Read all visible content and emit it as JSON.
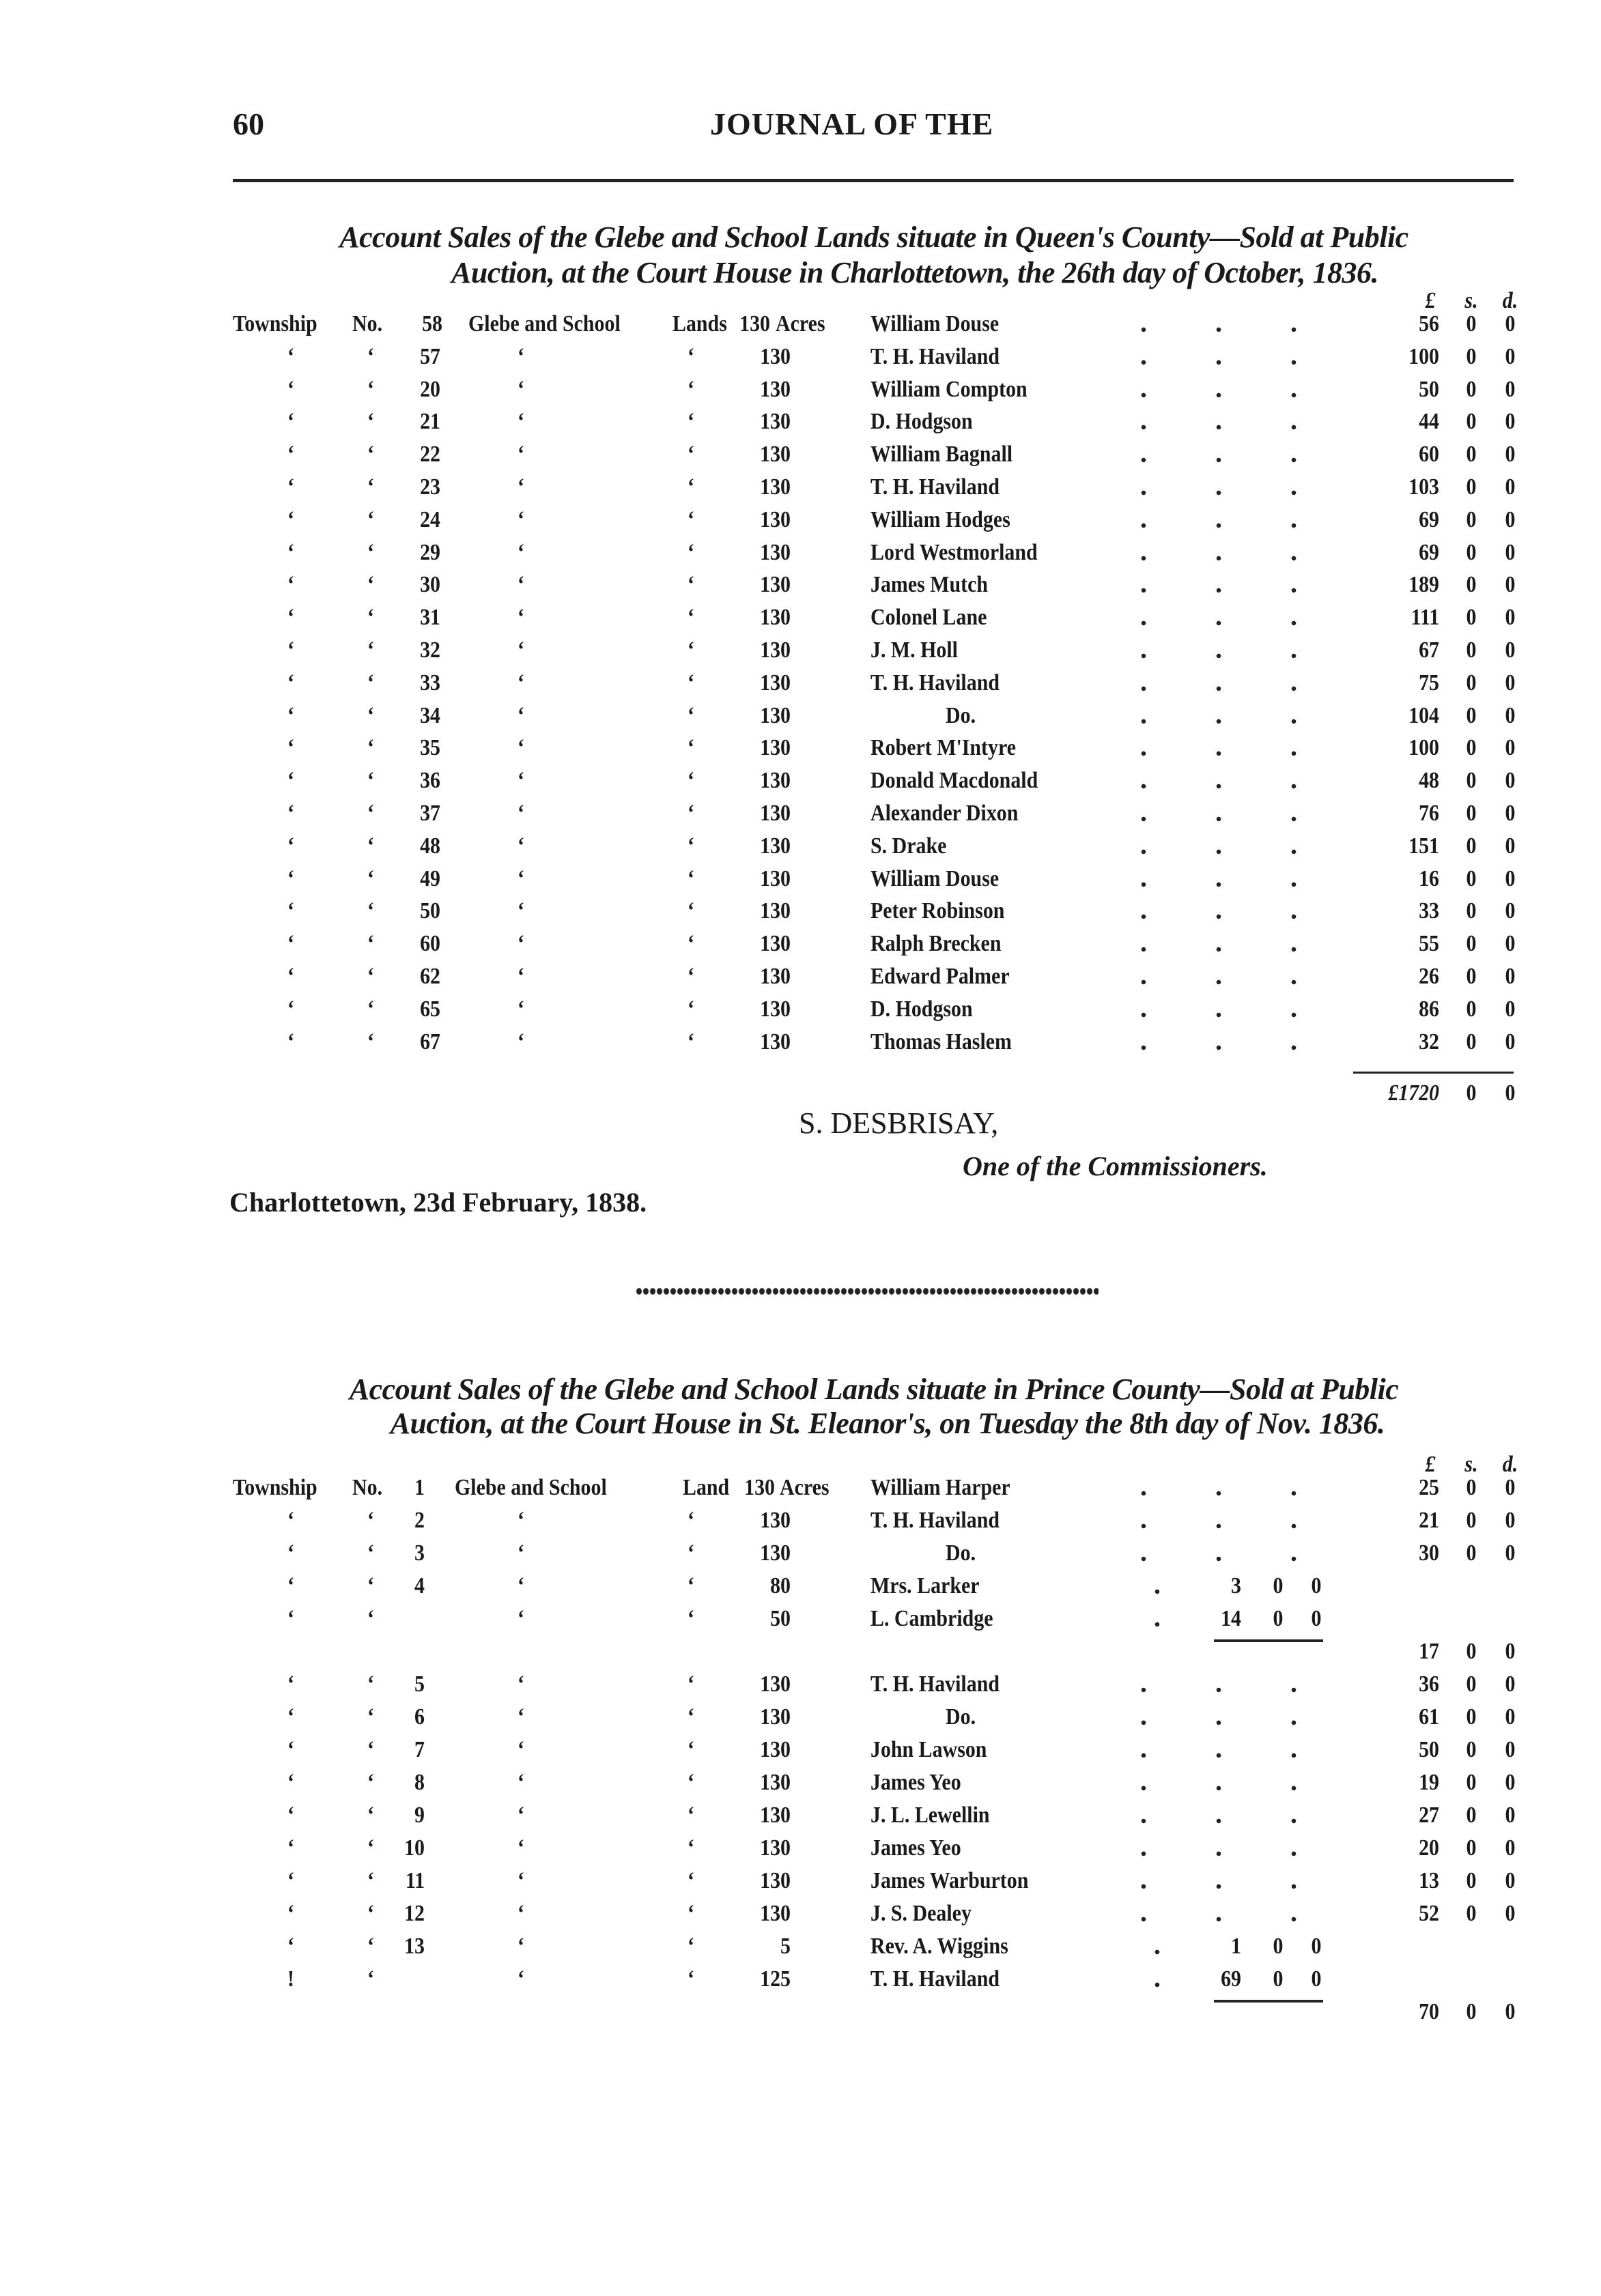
{
  "header": {
    "page_number": "60",
    "running_title": "JOURNAL OF THE"
  },
  "queens": {
    "title_line1": "Account Sales of the Glebe and School Lands situate in Queen's County—Sold at Public",
    "title_line2": "Auction, at the Court House in Charlottetown, the 26th day of October, 1836.",
    "currency_header": {
      "pounds": "£",
      "shillings": "s.",
      "pence": "d."
    },
    "rows": [
      {
        "c1": "Township",
        "c2": "No.",
        "lot": "58",
        "c4": "Glebe and School",
        "c5": "Lands",
        "acres": "130",
        "unit": "Acres",
        "name": "William Douse",
        "l": "56",
        "s": "0",
        "d": "0"
      },
      {
        "c1": "‘",
        "c2": "‘",
        "lot": "57",
        "c4": "‘",
        "c5": "‘",
        "acres": "130",
        "name": "T. H. Haviland",
        "l": "100",
        "s": "0",
        "d": "0"
      },
      {
        "c1": "‘",
        "c2": "‘",
        "lot": "20",
        "c4": "‘",
        "c5": "‘",
        "acres": "130",
        "name": "William Compton",
        "l": "50",
        "s": "0",
        "d": "0"
      },
      {
        "c1": "‘",
        "c2": "‘",
        "lot": "21",
        "c4": "‘",
        "c5": "‘",
        "acres": "130",
        "name": "D. Hodgson",
        "l": "44",
        "s": "0",
        "d": "0"
      },
      {
        "c1": "‘",
        "c2": "‘",
        "lot": "22",
        "c4": "‘",
        "c5": "‘",
        "acres": "130",
        "name": "William Bagnall",
        "l": "60",
        "s": "0",
        "d": "0"
      },
      {
        "c1": "‘",
        "c2": "‘",
        "lot": "23",
        "c4": "‘",
        "c5": "‘",
        "acres": "130",
        "name": "T. H. Haviland",
        "l": "103",
        "s": "0",
        "d": "0"
      },
      {
        "c1": "‘",
        "c2": "‘",
        "lot": "24",
        "c4": "‘",
        "c5": "‘",
        "acres": "130",
        "name": "William Hodges",
        "l": "69",
        "s": "0",
        "d": "0"
      },
      {
        "c1": "‘",
        "c2": "‘",
        "lot": "29",
        "c4": "‘",
        "c5": "‘",
        "acres": "130",
        "name": "Lord Westmorland",
        "l": "69",
        "s": "0",
        "d": "0"
      },
      {
        "c1": "‘",
        "c2": "‘",
        "lot": "30",
        "c4": "‘",
        "c5": "‘",
        "acres": "130",
        "name": "James Mutch",
        "l": "189",
        "s": "0",
        "d": "0"
      },
      {
        "c1": "‘",
        "c2": "‘",
        "lot": "31",
        "c4": "‘",
        "c5": "‘",
        "acres": "130",
        "name": "Colonel Lane",
        "l": "111",
        "s": "0",
        "d": "0"
      },
      {
        "c1": "‘",
        "c2": "‘",
        "lot": "32",
        "c4": "‘",
        "c5": "‘",
        "acres": "130",
        "name": "J. M. Holl",
        "l": "67",
        "s": "0",
        "d": "0"
      },
      {
        "c1": "‘",
        "c2": "‘",
        "lot": "33",
        "c4": "‘",
        "c5": "‘",
        "acres": "130",
        "name": "T. H. Haviland",
        "l": "75",
        "s": "0",
        "d": "0"
      },
      {
        "c1": "‘",
        "c2": "‘",
        "lot": "34",
        "c4": "‘",
        "c5": "‘",
        "acres": "130",
        "name": "Do.",
        "indent": true,
        "l": "104",
        "s": "0",
        "d": "0"
      },
      {
        "c1": "‘",
        "c2": "‘",
        "lot": "35",
        "c4": "‘",
        "c5": "‘",
        "acres": "130",
        "name": "Robert M'Intyre",
        "l": "100",
        "s": "0",
        "d": "0"
      },
      {
        "c1": "‘",
        "c2": "‘",
        "lot": "36",
        "c4": "‘",
        "c5": "‘",
        "acres": "130",
        "name": "Donald Macdonald",
        "l": "48",
        "s": "0",
        "d": "0"
      },
      {
        "c1": "‘",
        "c2": "‘",
        "lot": "37",
        "c4": "‘",
        "c5": "‘",
        "acres": "130",
        "name": "Alexander Dixon",
        "l": "76",
        "s": "0",
        "d": "0"
      },
      {
        "c1": "‘",
        "c2": "‘",
        "lot": "48",
        "c4": "‘",
        "c5": "‘",
        "acres": "130",
        "name": "S. Drake",
        "l": "151",
        "s": "0",
        "d": "0"
      },
      {
        "c1": "‘",
        "c2": "‘",
        "lot": "49",
        "c4": "‘",
        "c5": "‘",
        "acres": "130",
        "name": "William Douse",
        "l": "16",
        "s": "0",
        "d": "0"
      },
      {
        "c1": "‘",
        "c2": "‘",
        "lot": "50",
        "c4": "‘",
        "c5": "‘",
        "acres": "130",
        "name": "Peter Robinson",
        "l": "33",
        "s": "0",
        "d": "0"
      },
      {
        "c1": "‘",
        "c2": "‘",
        "lot": "60",
        "c4": "‘",
        "c5": "‘",
        "acres": "130",
        "name": "Ralph Brecken",
        "l": "55",
        "s": "0",
        "d": "0"
      },
      {
        "c1": "‘",
        "c2": "‘",
        "lot": "62",
        "c4": "‘",
        "c5": "‘",
        "acres": "130",
        "name": "Edward Palmer",
        "l": "26",
        "s": "0",
        "d": "0"
      },
      {
        "c1": "‘",
        "c2": "‘",
        "lot": "65",
        "c4": "‘",
        "c5": "‘",
        "acres": "130",
        "name": "D. Hodgson",
        "l": "86",
        "s": "0",
        "d": "0"
      },
      {
        "c1": "‘",
        "c2": "‘",
        "lot": "67",
        "c4": "‘",
        "c5": "‘",
        "acres": "130",
        "name": "Thomas Haslem",
        "l": "32",
        "s": "0",
        "d": "0"
      }
    ],
    "total": {
      "l": "£1720",
      "s": "0",
      "d": "0"
    },
    "signature": "S. DESBRISAY,",
    "signature_role": "One of the Commissioners.",
    "dateline": "Charlottetown, 23d February, 1838."
  },
  "prince": {
    "title_line1": "Account Sales of the Glebe and School Lands situate in Prince County—Sold at Public",
    "title_line2": "Auction, at the Court House in St. Eleanor's, on Tuesday the 8th day of Nov. 1836.",
    "currency_header": {
      "pounds": "£",
      "shillings": "s.",
      "pence": "d."
    },
    "rows": [
      {
        "c1": "Township",
        "c2": "No.",
        "lot": "1",
        "c4": "Glebe and School",
        "c5": "Land",
        "acres": "130",
        "unit": "Acres",
        "name": "William Harper",
        "l": "25",
        "s": "0",
        "d": "0"
      },
      {
        "c1": "‘",
        "c2": "‘",
        "lot": "2",
        "c4": "‘",
        "c5": "‘",
        "acres": "130",
        "name": "T. H. Haviland",
        "l": "21",
        "s": "0",
        "d": "0"
      },
      {
        "c1": "‘",
        "c2": "‘",
        "lot": "3",
        "c4": "‘",
        "c5": "‘",
        "acres": "130",
        "name": "Do.",
        "indent": true,
        "l": "30",
        "s": "0",
        "d": "0"
      },
      {
        "c1": "‘",
        "c2": "‘",
        "lot": "4",
        "c4": "‘",
        "c5": "‘",
        "acres": "80",
        "name": "Mrs. Larker",
        "sl": "3",
        "ss": "0",
        "sd": "0"
      },
      {
        "c1": "‘",
        "c2": "‘",
        "lot": "",
        "c4": "‘",
        "c5": "‘",
        "acres": "50",
        "name": "L. Cambridge",
        "sl": "14",
        "ss": "0",
        "sd": "0"
      },
      {
        "subrule": true,
        "l": "17",
        "s": "0",
        "d": "0"
      },
      {
        "c1": "‘",
        "c2": "‘",
        "lot": "5",
        "c4": "‘",
        "c5": "‘",
        "acres": "130",
        "name": "T. H. Haviland",
        "l": "36",
        "s": "0",
        "d": "0"
      },
      {
        "c1": "‘",
        "c2": "‘",
        "lot": "6",
        "c4": "‘",
        "c5": "‘",
        "acres": "130",
        "name": "Do.",
        "indent": true,
        "l": "61",
        "s": "0",
        "d": "0"
      },
      {
        "c1": "‘",
        "c2": "‘",
        "lot": "7",
        "c4": "‘",
        "c5": "‘",
        "acres": "130",
        "name": "John Lawson",
        "l": "50",
        "s": "0",
        "d": "0"
      },
      {
        "c1": "‘",
        "c2": "‘",
        "lot": "8",
        "c4": "‘",
        "c5": "‘",
        "acres": "130",
        "name": "James Yeo",
        "l": "19",
        "s": "0",
        "d": "0"
      },
      {
        "c1": "‘",
        "c2": "‘",
        "lot": "9",
        "c4": "‘",
        "c5": "‘",
        "acres": "130",
        "name": "J. L. Lewellin",
        "l": "27",
        "s": "0",
        "d": "0"
      },
      {
        "c1": "‘",
        "c2": "‘",
        "lot": "10",
        "c4": "‘",
        "c5": "‘",
        "acres": "130",
        "name": "James Yeo",
        "l": "20",
        "s": "0",
        "d": "0"
      },
      {
        "c1": "‘",
        "c2": "‘",
        "lot": "11",
        "c4": "‘",
        "c5": "‘",
        "acres": "130",
        "name": "James Warburton",
        "l": "13",
        "s": "0",
        "d": "0"
      },
      {
        "c1": "‘",
        "c2": "‘",
        "lot": "12",
        "c4": "‘",
        "c5": "‘",
        "acres": "130",
        "name": "J. S. Dealey",
        "l": "52",
        "s": "0",
        "d": "0"
      },
      {
        "c1": "‘",
        "c2": "‘",
        "lot": "13",
        "c4": "‘",
        "c5": "‘",
        "acres": "5",
        "name": "Rev. A. Wiggins",
        "sl": "1",
        "ss": "0",
        "sd": "0"
      },
      {
        "c1": "!",
        "c2": "‘",
        "lot": "",
        "c4": "‘",
        "c5": "‘",
        "acres": "125",
        "name": "T. H. Haviland",
        "sl": "69",
        "ss": "0",
        "sd": "0"
      },
      {
        "subrule": true,
        "l": "70",
        "s": "0",
        "d": "0"
      }
    ]
  }
}
